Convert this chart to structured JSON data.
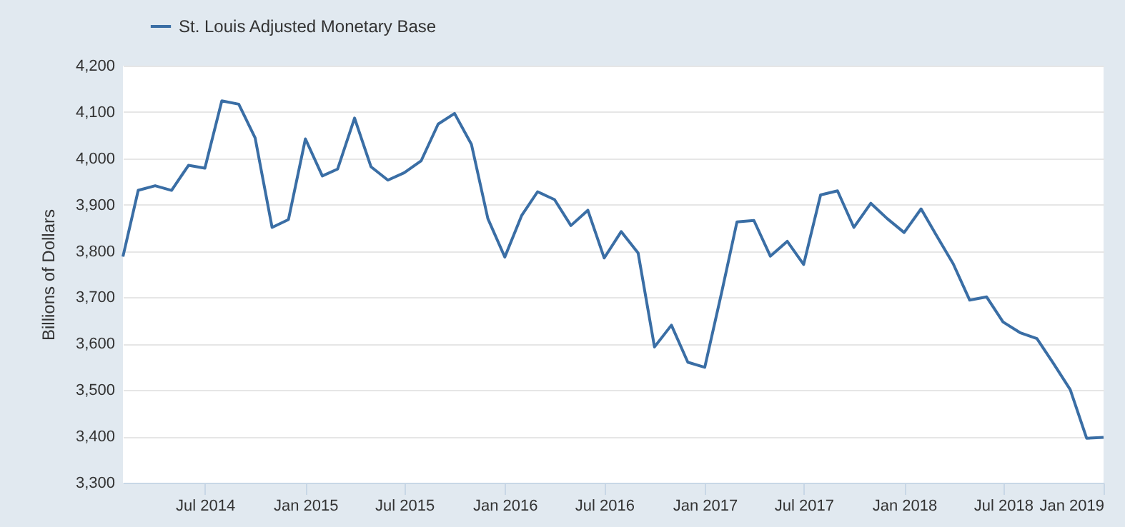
{
  "chart_data": {
    "type": "line",
    "ylabel": "Billions of Dollars",
    "x": [
      "2014-02",
      "2014-03",
      "2014-04",
      "2014-05",
      "2014-06",
      "2014-07",
      "2014-08",
      "2014-09",
      "2014-10",
      "2014-11",
      "2014-12",
      "2015-01",
      "2015-02",
      "2015-03",
      "2015-04",
      "2015-05",
      "2015-06",
      "2015-07",
      "2015-08",
      "2015-09",
      "2015-10",
      "2015-11",
      "2015-12",
      "2016-01",
      "2016-02",
      "2016-03",
      "2016-04",
      "2016-05",
      "2016-06",
      "2016-07",
      "2016-08",
      "2016-09",
      "2016-10",
      "2016-11",
      "2016-12",
      "2017-01",
      "2017-02",
      "2017-03",
      "2017-04",
      "2017-05",
      "2017-06",
      "2017-07",
      "2017-08",
      "2017-09",
      "2017-10",
      "2017-11",
      "2017-12",
      "2018-01",
      "2018-02",
      "2018-03",
      "2018-04",
      "2018-05",
      "2018-06",
      "2018-07",
      "2018-08",
      "2018-09",
      "2018-10",
      "2018-11",
      "2018-12",
      "2019-01"
    ],
    "series": [
      {
        "name": "St. Louis Adjusted Monetary Base",
        "color": "#3a6ea5",
        "values": [
          3788,
          3931,
          3941,
          3931,
          3985,
          3979,
          4124,
          4117,
          4044,
          3851,
          3868,
          4042,
          3962,
          3977,
          4087,
          3982,
          3953,
          3969,
          3995,
          4074,
          4097,
          4030,
          3870,
          3787,
          3877,
          3928,
          3911,
          3855,
          3888,
          3785,
          3842,
          3796,
          3593,
          3640,
          3560,
          3549,
          3711,
          3863,
          3866,
          3789,
          3821,
          3771,
          3921,
          3930,
          3851,
          3903,
          3870,
          3840,
          3891,
          3834,
          3772,
          3694,
          3701,
          3647,
          3624,
          3611,
          3558,
          3501,
          3396,
          3398
        ]
      }
    ],
    "xlim": [
      "2014-02",
      "2019-01"
    ],
    "xticks": [
      {
        "value": "2014-07",
        "label": "Jul 2014"
      },
      {
        "value": "2015-01",
        "label": "Jan 2015"
      },
      {
        "value": "2015-07",
        "label": "Jul 2015"
      },
      {
        "value": "2016-01",
        "label": "Jan 2016"
      },
      {
        "value": "2016-07",
        "label": "Jul 2016"
      },
      {
        "value": "2017-01",
        "label": "Jan 2017"
      },
      {
        "value": "2017-07",
        "label": "Jul 2017"
      },
      {
        "value": "2018-01",
        "label": "Jan 2018"
      },
      {
        "value": "2018-07",
        "label": "Jul 2018"
      },
      {
        "value": "2019-01",
        "label": "Jan 2019"
      }
    ],
    "ylim": [
      3300,
      4200
    ],
    "yticks": [
      {
        "value": 3300,
        "label": "3,300"
      },
      {
        "value": 3400,
        "label": "3,400"
      },
      {
        "value": 3500,
        "label": "3,500"
      },
      {
        "value": 3600,
        "label": "3,600"
      },
      {
        "value": 3700,
        "label": "3,700"
      },
      {
        "value": 3800,
        "label": "3,800"
      },
      {
        "value": 3900,
        "label": "3,900"
      },
      {
        "value": 4000,
        "label": "4,000"
      },
      {
        "value": 4100,
        "label": "4,100"
      },
      {
        "value": 4200,
        "label": "4,200"
      }
    ],
    "grid": "y",
    "legend": "top left",
    "marker": "none",
    "line_style": "solid"
  }
}
